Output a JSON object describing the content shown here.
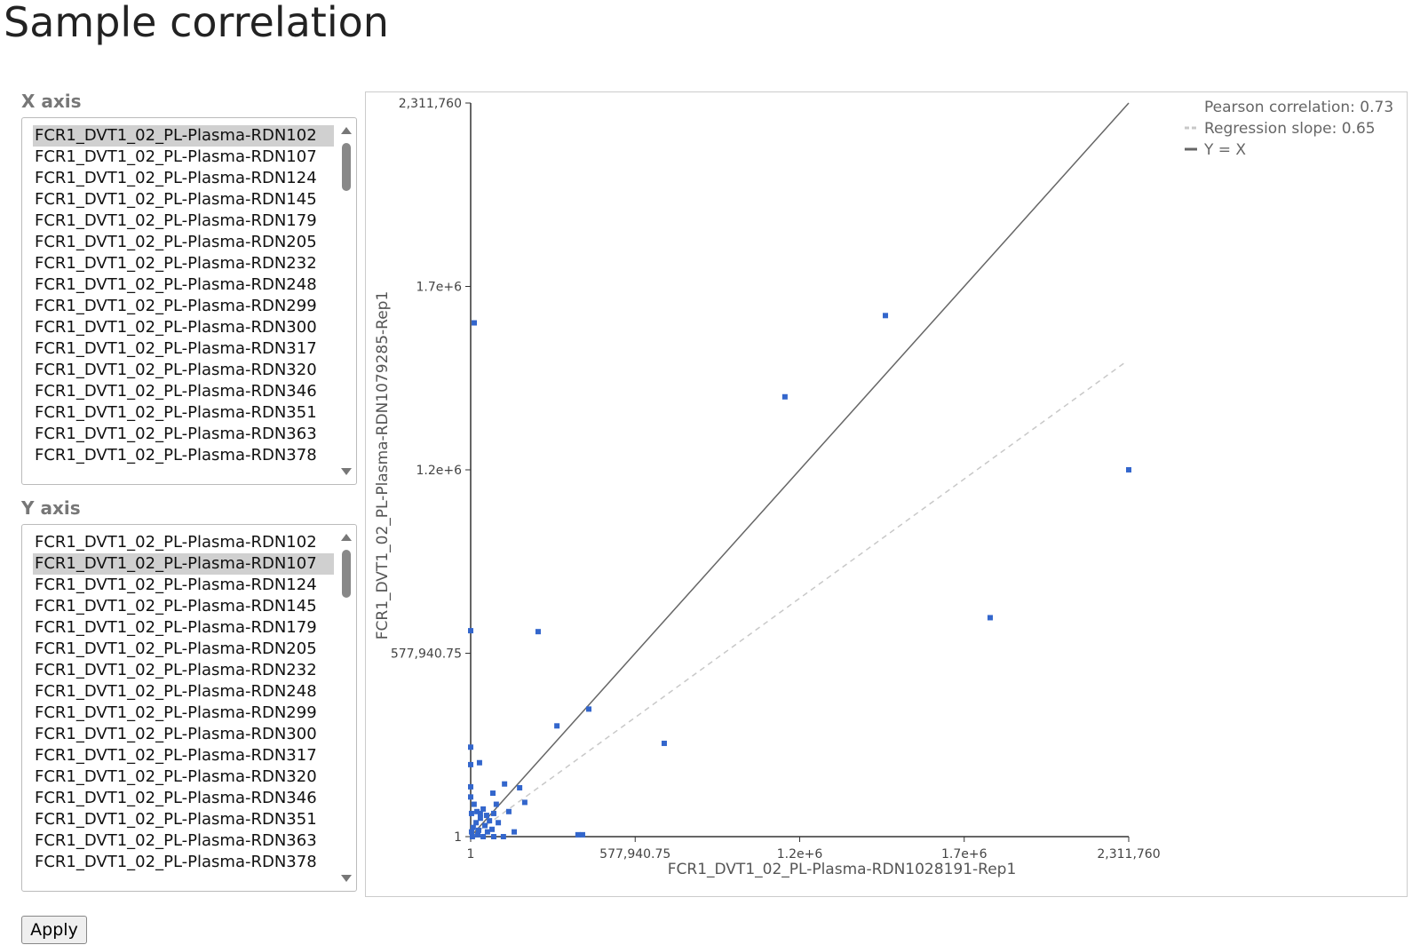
{
  "page": {
    "title": "Sample correlation",
    "button": "Apply"
  },
  "x_axis": {
    "label": "X axis",
    "selected": 0,
    "options": [
      "FCR1_DVT1_02_PL-Plasma-RDN102",
      "FCR1_DVT1_02_PL-Plasma-RDN107",
      "FCR1_DVT1_02_PL-Plasma-RDN124",
      "FCR1_DVT1_02_PL-Plasma-RDN145",
      "FCR1_DVT1_02_PL-Plasma-RDN179",
      "FCR1_DVT1_02_PL-Plasma-RDN205",
      "FCR1_DVT1_02_PL-Plasma-RDN232",
      "FCR1_DVT1_02_PL-Plasma-RDN248",
      "FCR1_DVT1_02_PL-Plasma-RDN299",
      "FCR1_DVT1_02_PL-Plasma-RDN300",
      "FCR1_DVT1_02_PL-Plasma-RDN317",
      "FCR1_DVT1_02_PL-Plasma-RDN320",
      "FCR1_DVT1_02_PL-Plasma-RDN346",
      "FCR1_DVT1_02_PL-Plasma-RDN351",
      "FCR1_DVT1_02_PL-Plasma-RDN363",
      "FCR1_DVT1_02_PL-Plasma-RDN378"
    ]
  },
  "y_axis": {
    "label": "Y axis",
    "selected": 1,
    "options": [
      "FCR1_DVT1_02_PL-Plasma-RDN102",
      "FCR1_DVT1_02_PL-Plasma-RDN107",
      "FCR1_DVT1_02_PL-Plasma-RDN124",
      "FCR1_DVT1_02_PL-Plasma-RDN145",
      "FCR1_DVT1_02_PL-Plasma-RDN179",
      "FCR1_DVT1_02_PL-Plasma-RDN205",
      "FCR1_DVT1_02_PL-Plasma-RDN232",
      "FCR1_DVT1_02_PL-Plasma-RDN248",
      "FCR1_DVT1_02_PL-Plasma-RDN299",
      "FCR1_DVT1_02_PL-Plasma-RDN300",
      "FCR1_DVT1_02_PL-Plasma-RDN317",
      "FCR1_DVT1_02_PL-Plasma-RDN320",
      "FCR1_DVT1_02_PL-Plasma-RDN346",
      "FCR1_DVT1_02_PL-Plasma-RDN351",
      "FCR1_DVT1_02_PL-Plasma-RDN363",
      "FCR1_DVT1_02_PL-Plasma-RDN378"
    ]
  },
  "chart_data": {
    "type": "scatter",
    "xlabel": "FCR1_DVT1_02_PL-Plasma-RDN1028191-Rep1",
    "ylabel": "FCR1_DVT1_02_PL-Plasma-RDN1079285-Rep1",
    "color": "#3366cc",
    "xlim": [
      1,
      2311760
    ],
    "ylim": [
      1,
      2311760
    ],
    "xticks": [
      1,
      {
        "value": 577940.75,
        "label": "577,940.75"
      },
      {
        "value": 1155880.5,
        "label": "1.2e+6"
      },
      {
        "value": 1733820.25,
        "label": "1.7e+6"
      },
      {
        "value": 2311760,
        "label": "2,311,760"
      }
    ],
    "yticks": [
      1,
      {
        "value": 577940.75,
        "label": "577,940.75"
      },
      {
        "value": 1155880.5,
        "label": "1.2e+6"
      },
      {
        "value": 1733820.25,
        "label": "1.7e+6"
      },
      {
        "value": 2311760,
        "label": "2,311,760"
      }
    ],
    "x": [
      12500,
      1457000,
      1104000,
      2311760,
      1825000,
      1,
      237000,
      415000,
      303000,
      680000,
      1,
      1,
      31000,
      119000,
      172000,
      1,
      1,
      78000,
      190000,
      81000,
      134000,
      153000,
      115000,
      81000,
      377000,
      393000,
      9000,
      19000,
      34000,
      28000,
      50000,
      66000,
      3000,
      12000,
      44000,
      56000,
      90000,
      97000,
      25000,
      44000,
      59000,
      3000,
      6000,
      75000,
      34000,
      22000
    ],
    "y": [
      1619000,
      1642000,
      1386000,
      1156000,
      690000,
      649000,
      646000,
      402000,
      349000,
      294000,
      282000,
      227000,
      233000,
      166000,
      154000,
      157000,
      125000,
      137000,
      108000,
      73000,
      79000,
      15000,
      1,
      1,
      6000,
      6000,
      29000,
      44000,
      58000,
      20000,
      35000,
      50000,
      73000,
      102000,
      87000,
      67000,
      102000,
      44000,
      6000,
      1,
      15000,
      15000,
      1,
      23000,
      73000,
      79000
    ],
    "regression_slope": 0.65,
    "legend": [
      {
        "label": "Pearson correlation: 0.73"
      },
      {
        "label": "Regression slope: 0.65",
        "color": "#c8c8c8",
        "dash": true
      },
      {
        "label": "Y = X",
        "color": "#666666",
        "dash": false
      }
    ]
  }
}
